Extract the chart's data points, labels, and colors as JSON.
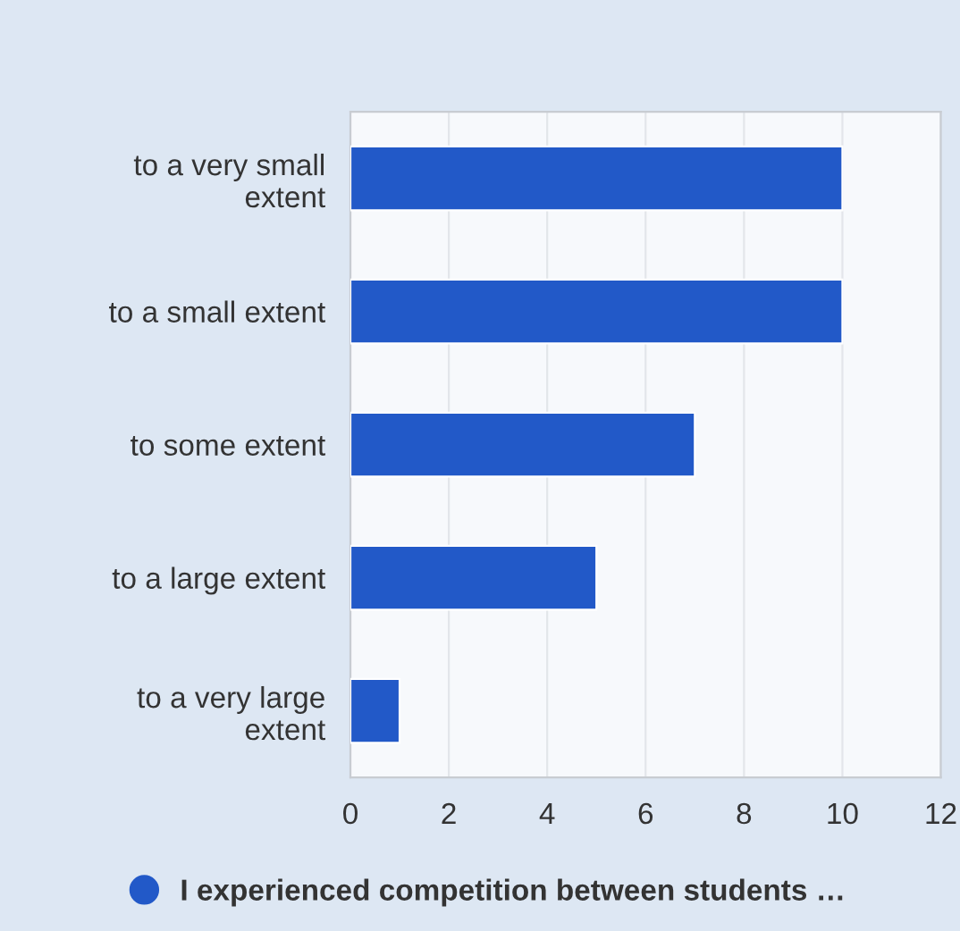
{
  "chart_data": {
    "type": "bar",
    "orientation": "horizontal",
    "categories": [
      "to a very small\nextent",
      "to a small extent",
      "to some extent",
      "to a large extent",
      "to a very large\nextent"
    ],
    "series": [
      {
        "name": "I experienced competition between students …",
        "color": "#2259c8",
        "values": [
          10,
          10,
          7,
          5,
          1
        ]
      }
    ],
    "xlim": [
      0,
      12
    ],
    "xticks": [
      0,
      2,
      4,
      6,
      8,
      10,
      12
    ],
    "grid": "x",
    "legend": "bottom"
  }
}
